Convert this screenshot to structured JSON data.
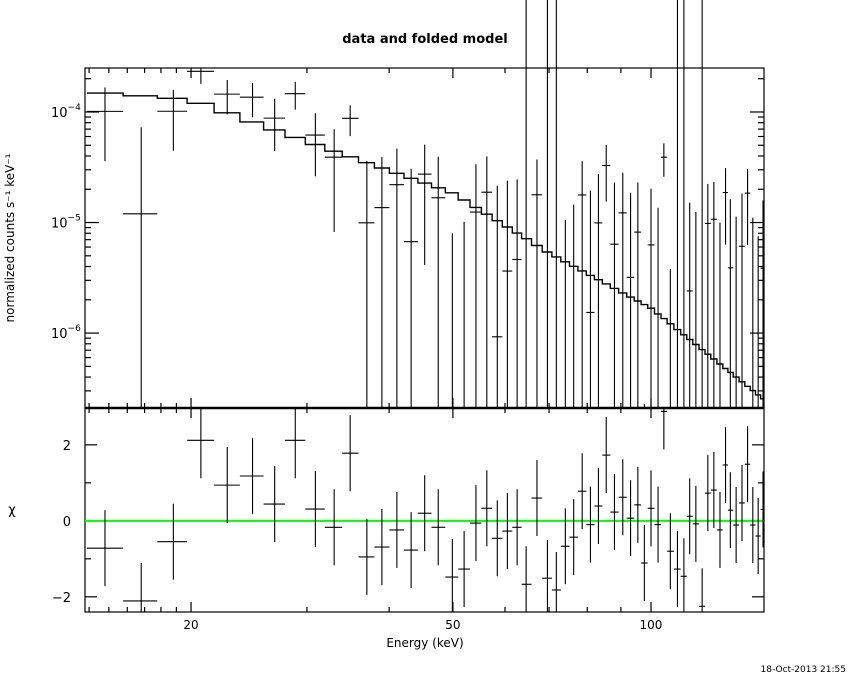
{
  "chart_data": [
    {
      "type": "scatter",
      "panel": "top",
      "title": "data and folded model",
      "ylabel": "normalized counts s⁻¹ keV⁻¹",
      "xscale": "log",
      "yscale": "log",
      "xlim": [
        13.8,
        148.5
      ],
      "ylim": [
        2.1e-07,
        0.00025
      ],
      "ytick_labels": [
        {
          "value": 0.0001,
          "base": "10",
          "exp": "−4"
        },
        {
          "value": 1e-05,
          "base": "10",
          "exp": "−5"
        },
        {
          "value": 1e-06,
          "base": "10",
          "exp": "−6"
        }
      ],
      "model_curve": {
        "energy": [
          13.8,
          15,
          20,
          30,
          50,
          70,
          100,
          148.5
        ],
        "value": [
          0.00015,
          0.000148,
          0.000129,
          5.4e-05,
          1.85e-05,
          5.3e-06,
          1.68e-06,
          2.5e-07
        ]
      },
      "error_curve": {
        "energy": [
          13.8,
          20,
          29,
          35,
          50,
          85,
          105,
          148.5
        ],
        "value": [
          6.8e-05,
          5.5e-05,
          4.1e-05,
          2.7e-05,
          2.2e-05,
          1.75e-05,
          1.3e-05,
          1.2e-05
        ]
      },
      "colors": {
        "data": "#000000",
        "model": "#000000"
      }
    },
    {
      "type": "scatter",
      "panel": "bottom",
      "xlabel": "Energy (keV)",
      "ylabel": "χ",
      "xscale": "log",
      "xlim": [
        13.8,
        148.5
      ],
      "ylim": [
        -2.4,
        2.97
      ],
      "xtick_labels": [
        {
          "value": 20,
          "label": "20"
        },
        {
          "value": 50,
          "label": "50"
        },
        {
          "value": 100,
          "label": "100"
        }
      ],
      "ytick_labels": [
        {
          "value": 2,
          "label": "2"
        },
        {
          "value": 0,
          "label": "0"
        },
        {
          "value": -2,
          "label": "−2"
        }
      ],
      "energy": [
        14.8,
        16.8,
        18.8,
        20.7,
        22.7,
        24.8,
        26.8,
        28.8,
        30.9,
        33.0,
        34.9,
        37.0,
        39.0,
        41.1,
        43.2,
        45.3,
        47.5,
        49.9,
        52.0,
        54.2,
        56.3,
        58.4,
        60.5,
        62.6,
        64.6,
        67.1,
        69.6,
        71.8,
        74.1,
        76.3,
        78.6,
        80.9,
        83.2,
        85.5,
        88.0,
        90.6,
        93.1,
        95.5,
        97.7,
        100,
        102.5,
        104.6,
        107,
        109.7,
        112.2,
        114.5,
        117,
        119.6,
        122,
        124.6,
        127.3,
        129.8,
        132,
        134.7,
        137.5,
        140.2,
        142.8,
        145.5,
        148
      ],
      "chi": [
        -0.72,
        -2.11,
        -0.55,
        2.12,
        0.94,
        1.18,
        0.44,
        2.12,
        0.31,
        -0.17,
        1.78,
        -0.95,
        -0.69,
        -0.24,
        -0.77,
        0.2,
        -0.17,
        -1.48,
        -1.27,
        -0.06,
        0.33,
        -0.46,
        -0.27,
        -0.17,
        -1.67,
        0.6,
        -1.51,
        -1.82,
        -0.67,
        -0.43,
        0.78,
        -0.1,
        0.39,
        1.73,
        0.23,
        0.62,
        0.07,
        0.42,
        -1.11,
        0.33,
        -0.1,
        2.88,
        -0.8,
        -1.27,
        -1.46,
        0.12,
        -0.08,
        -2.25,
        0.73,
        0.81,
        -0.24,
        1.47,
        0.28,
        -0.11,
        0.47,
        1.49,
        -0.11,
        -0.4,
        0.3
      ],
      "zero_line_color": "#00ff00"
    }
  ],
  "timestamp": "18-Oct-2013 21:55"
}
